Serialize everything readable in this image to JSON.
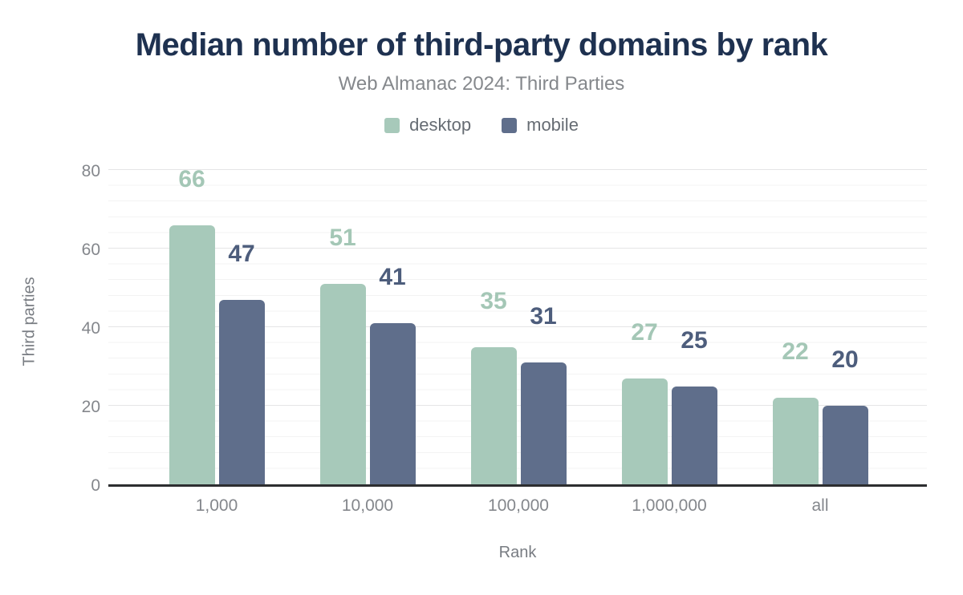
{
  "header": {
    "title": "Median number of third-party domains by rank",
    "subtitle": "Web Almanac 2024: Third Parties"
  },
  "chart_data": {
    "type": "bar",
    "title": "Median number of third-party domains by rank",
    "subtitle": "Web Almanac 2024: Third Parties",
    "categories": [
      "1,000",
      "10,000",
      "100,000",
      "1,000,000",
      "all"
    ],
    "series": [
      {
        "name": "desktop",
        "color": "#a7c9ba",
        "label_color": "#a4c7b6",
        "values": [
          66,
          51,
          35,
          27,
          22
        ]
      },
      {
        "name": "mobile",
        "color": "#5f6e8b",
        "label_color": "#4d5d7c",
        "values": [
          47,
          41,
          31,
          25,
          20
        ]
      }
    ],
    "xlabel": "Rank",
    "ylabel": "Third parties",
    "ylim": [
      0,
      80
    ],
    "yticks": [
      0,
      20,
      40,
      60,
      80
    ],
    "grid": "horizontal; major every 20, faint minor every 4",
    "legend_position": "top-center",
    "bar_value_labels": "shown above each bar in series color"
  },
  "colors": {
    "title": "#1e3150",
    "subtitle": "#85888c",
    "axis_tick": "#84878c",
    "axis_title": "#787c82",
    "baseline": "#2d2e30",
    "gridline_major": "#e5e5e6",
    "gridline_minor": "#f3f3f3",
    "background": "#ffffff"
  }
}
